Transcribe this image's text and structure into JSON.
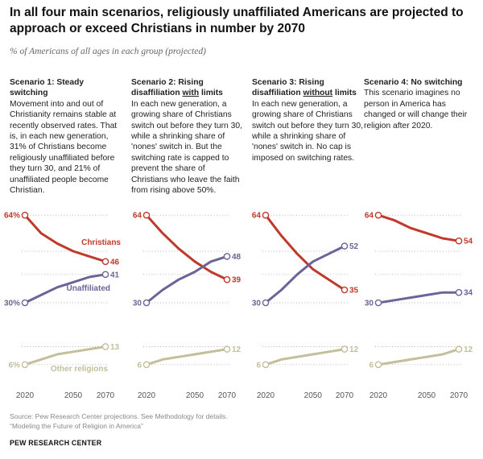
{
  "title": "In all four main scenarios, religiously unaffiliated Americans are projected to approach or exceed Christians in number by 2070",
  "subtitle": "% of Americans of all ages in each group (projected)",
  "colors": {
    "christians": "#c0392b",
    "unaffiliated": "#6b6497",
    "other": "#c2bf9a",
    "grid": "#9a9a9a",
    "axis_text": "#555555"
  },
  "panels": [
    {
      "scenario_title_plain": "Scenario 1: Steady switching",
      "desc": "Movement into and out of Christianity remains stable at recently observed rates. That is, in each new generation, 31% of Christians become religiously unaffiliated before they turn 30, and 21% of unaffiliated people become Christian."
    },
    {
      "scenario_title_pre": "Scenario 2: Rising disaffiliation ",
      "scenario_title_u": "with",
      "scenario_title_post": " limits",
      "desc": "In each new generation, a growing share of Christians switch out before they turn 30, while a shrinking share of 'nones' switch in. But the switching rate is capped to prevent the share of Christians who leave the faith from rising above 50%."
    },
    {
      "scenario_title_pre": "Scenario 3: Rising disaffiliation ",
      "scenario_title_u": "without",
      "scenario_title_post": " limits",
      "desc": "In each new generation, a growing share of Christians switch out before they turn 30, while a shrinking share of 'nones' switch in. No cap is imposed on switching rates."
    },
    {
      "scenario_title_plain": "Scenario 4: No switching",
      "desc": "This scenario imagines no person in America has changed or will change their religion after 2020."
    }
  ],
  "chart_data": {
    "type": "line",
    "x": [
      2020,
      2030,
      2040,
      2050,
      2060,
      2070
    ],
    "xticks": [
      "2020",
      "2050",
      "2070"
    ],
    "series_labels": {
      "christians": "Christians",
      "unaffiliated": "Unaffiliated",
      "other": "Other religions"
    },
    "ylim": [
      0,
      70
    ],
    "grid": "dotted horizontal",
    "panels": [
      {
        "christians": [
          64,
          57,
          53,
          50,
          48,
          46
        ],
        "unaffiliated": [
          30,
          33,
          36,
          38,
          40,
          41
        ],
        "other": [
          6,
          8,
          10,
          11,
          12,
          13
        ],
        "labels": {
          "christians_start": "64%",
          "christians_end": "46",
          "unaffiliated_start": "30%",
          "unaffiliated_end": "41",
          "other_start": "6%",
          "other_end": "13"
        }
      },
      {
        "christians": [
          64,
          57,
          51,
          46,
          42,
          39
        ],
        "unaffiliated": [
          30,
          35,
          39,
          42,
          46,
          48
        ],
        "other": [
          6,
          8,
          9,
          10,
          11,
          12
        ],
        "labels": {
          "christians_start": "64",
          "christians_end": "39",
          "unaffiliated_start": "30",
          "unaffiliated_end": "48",
          "other_start": "6",
          "other_end": "12"
        }
      },
      {
        "christians": [
          64,
          56,
          49,
          43,
          39,
          35
        ],
        "unaffiliated": [
          30,
          35,
          41,
          46,
          49,
          52
        ],
        "other": [
          6,
          8,
          9,
          10,
          11,
          12
        ],
        "labels": {
          "christians_start": "64",
          "christians_end": "35",
          "unaffiliated_start": "30",
          "unaffiliated_end": "52",
          "other_start": "6",
          "other_end": "12"
        }
      },
      {
        "christians": [
          64,
          62,
          59,
          57,
          55,
          54
        ],
        "unaffiliated": [
          30,
          31,
          32,
          33,
          34,
          34
        ],
        "other": [
          6,
          7,
          8,
          9,
          10,
          12
        ],
        "labels": {
          "christians_start": "64",
          "christians_end": "54",
          "unaffiliated_start": "30",
          "unaffiliated_end": "34",
          "other_start": "6",
          "other_end": "12"
        }
      }
    ]
  },
  "source_line1": "Source: Pew Research Center projections. See Methodology for details.",
  "source_line2": "“Modeling the Future of Religion in America”",
  "brand": "PEW RESEARCH CENTER"
}
